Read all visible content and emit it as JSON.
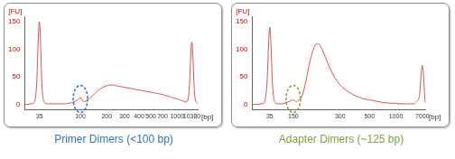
{
  "chart_data": [
    {
      "type": "line",
      "categories": [
        null,
        null,
        null,
        null,
        null,
        35,
        null,
        null,
        null,
        null,
        null,
        null,
        null,
        null,
        null,
        null,
        null,
        null,
        null,
        100,
        null,
        null,
        null,
        null,
        null,
        null,
        null,
        null,
        200,
        null,
        null,
        null,
        null,
        null,
        300,
        null,
        null,
        null,
        null,
        400,
        null,
        null,
        null,
        500,
        null,
        null,
        null,
        700,
        null,
        null,
        null,
        null,
        1000,
        null,
        null,
        null,
        null,
        10380,
        null,
        null
      ],
      "values": [
        0,
        0,
        1,
        2,
        30,
        150,
        25,
        2,
        1,
        1,
        1,
        1,
        1,
        1,
        1,
        2,
        3,
        5,
        8,
        12,
        5,
        6,
        10,
        15,
        20,
        25,
        29,
        32,
        34,
        35,
        35,
        34,
        33,
        32,
        31,
        30,
        29,
        28,
        27,
        26,
        25,
        24,
        23,
        22,
        21,
        20,
        19,
        18,
        16,
        15,
        13,
        11,
        10,
        8,
        6,
        4,
        20,
        113,
        15,
        1
      ],
      "color": "#d9534f",
      "ylim": [
        -10,
        160
      ],
      "yticks": [
        0,
        50,
        100,
        150
      ],
      "x_label": "[bp]",
      "y_label": "[FU]",
      "grid": false,
      "annotation": {
        "text": "Primer Dimers (<100 bp)",
        "color": "#2e75b6",
        "x": 100
      }
    },
    {
      "type": "line",
      "categories": [
        null,
        null,
        null,
        null,
        null,
        null,
        35,
        null,
        null,
        null,
        null,
        null,
        null,
        null,
        150,
        null,
        null,
        null,
        null,
        null,
        null,
        null,
        null,
        null,
        null,
        null,
        null,
        null,
        null,
        null,
        300,
        null,
        null,
        null,
        null,
        null,
        null,
        null,
        null,
        null,
        500,
        null,
        null,
        null,
        null,
        null,
        null,
        null,
        null,
        1000,
        null,
        null,
        null,
        null,
        null,
        null,
        null,
        null,
        7000,
        null
      ],
      "values": [
        0,
        0,
        0,
        1,
        2,
        35,
        140,
        30,
        2,
        1,
        1,
        2,
        4,
        6,
        8,
        5,
        8,
        15,
        35,
        60,
        85,
        102,
        110,
        108,
        98,
        85,
        72,
        60,
        50,
        42,
        35,
        30,
        26,
        22,
        19,
        16,
        14,
        12,
        10,
        9,
        8,
        7,
        6,
        5,
        4,
        3,
        3,
        2,
        2,
        2,
        1,
        1,
        1,
        1,
        1,
        1,
        5,
        15,
        71,
        3
      ],
      "color": "#d9534f",
      "ylim": [
        -10,
        160
      ],
      "yticks": [
        0,
        50,
        100,
        150
      ],
      "x_label": "[bp]",
      "y_label": "[FU]",
      "grid": false,
      "annotation": {
        "text": "Adapter Dimers (~125 bp)",
        "color": "#7aa33a",
        "x": 150
      }
    }
  ]
}
